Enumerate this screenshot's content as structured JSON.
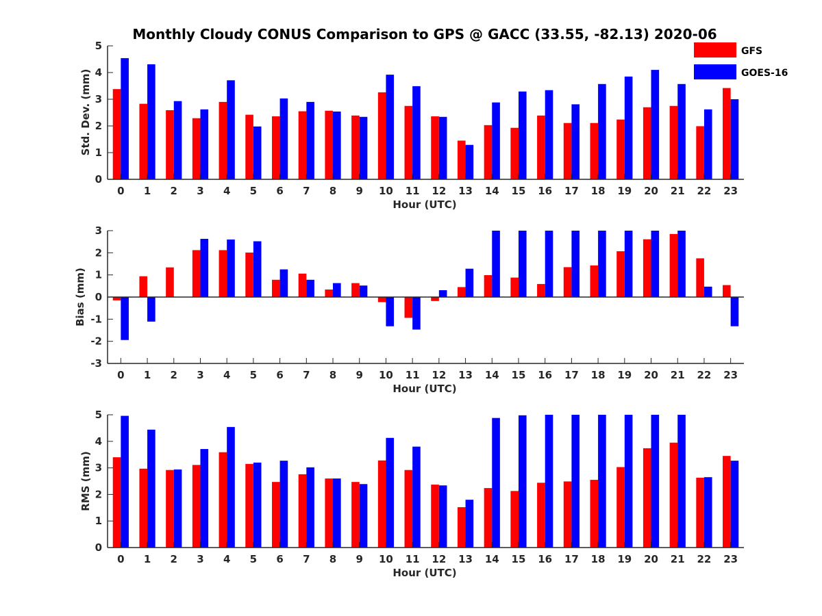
{
  "title": "Monthly Cloudy CONUS Comparison to GPS @ GACC (33.55, -82.13) 2020-06",
  "legend": {
    "placement": "top-right",
    "entries": [
      {
        "label": "GFS",
        "color": "#ff0000"
      },
      {
        "label": "GOES-16",
        "color": "#0000ff"
      }
    ]
  },
  "chart_data": [
    {
      "type": "bar",
      "xlabel": "Hour (UTC)",
      "ylabel": "Std. Dev. (mm)",
      "ylim": [
        0,
        5
      ],
      "yticks": [
        0,
        1,
        2,
        3,
        4,
        5
      ],
      "categories": [
        "0",
        "1",
        "2",
        "3",
        "4",
        "5",
        "6",
        "7",
        "8",
        "9",
        "10",
        "11",
        "12",
        "13",
        "14",
        "15",
        "16",
        "17",
        "18",
        "19",
        "20",
        "21",
        "22",
        "23"
      ],
      "series": [
        {
          "name": "GFS",
          "color": "#ff0000",
          "values": [
            3.38,
            2.83,
            2.59,
            2.29,
            2.9,
            2.42,
            2.36,
            2.55,
            2.57,
            2.39,
            3.26,
            2.75,
            2.36,
            1.45,
            2.03,
            1.93,
            2.39,
            2.11,
            2.11,
            2.24,
            2.7,
            2.75,
            1.99,
            3.42
          ]
        },
        {
          "name": "GOES-16",
          "color": "#0000ff",
          "values": [
            4.54,
            4.31,
            2.93,
            2.62,
            3.71,
            1.98,
            3.03,
            2.9,
            2.54,
            2.34,
            3.92,
            3.49,
            2.34,
            1.29,
            2.88,
            3.29,
            3.34,
            2.81,
            3.57,
            3.85,
            4.1,
            3.57,
            2.62,
            3.0
          ]
        }
      ]
    },
    {
      "type": "bar",
      "xlabel": "Hour (UTC)",
      "ylabel": "Bias (mm)",
      "ylim": [
        -3,
        3
      ],
      "yticks": [
        -3,
        -2,
        -1,
        0,
        1,
        2,
        3
      ],
      "categories": [
        "0",
        "1",
        "2",
        "3",
        "4",
        "5",
        "6",
        "7",
        "8",
        "9",
        "10",
        "11",
        "12",
        "13",
        "14",
        "15",
        "16",
        "17",
        "18",
        "19",
        "20",
        "21",
        "22",
        "23"
      ],
      "series": [
        {
          "name": "GFS",
          "color": "#ff0000",
          "values": [
            -0.15,
            0.94,
            1.34,
            2.12,
            2.12,
            2.01,
            0.78,
            1.06,
            0.34,
            0.63,
            -0.23,
            -0.94,
            -0.18,
            0.45,
            0.99,
            0.88,
            0.59,
            1.35,
            1.43,
            2.07,
            2.61,
            2.85,
            1.75,
            0.54
          ]
        },
        {
          "name": "GOES-16",
          "color": "#0000ff",
          "values": [
            -1.94,
            -1.11,
            0.0,
            2.63,
            2.6,
            2.52,
            1.25,
            0.78,
            0.63,
            0.52,
            -1.32,
            -1.47,
            0.31,
            1.28,
            3.0,
            3.0,
            3.0,
            3.0,
            3.0,
            3.0,
            3.0,
            3.0,
            0.47,
            -1.32
          ]
        }
      ]
    },
    {
      "type": "bar",
      "xlabel": "Hour (UTC)",
      "ylabel": "RMS (mm)",
      "ylim": [
        0,
        5
      ],
      "yticks": [
        0,
        1,
        2,
        3,
        4,
        5
      ],
      "categories": [
        "0",
        "1",
        "2",
        "3",
        "4",
        "5",
        "6",
        "7",
        "8",
        "9",
        "10",
        "11",
        "12",
        "13",
        "14",
        "15",
        "16",
        "17",
        "18",
        "19",
        "20",
        "21",
        "22",
        "23"
      ],
      "series": [
        {
          "name": "GFS",
          "color": "#ff0000",
          "values": [
            3.4,
            2.97,
            2.92,
            3.11,
            3.59,
            3.15,
            2.47,
            2.76,
            2.6,
            2.47,
            3.28,
            2.92,
            2.37,
            1.52,
            2.24,
            2.13,
            2.44,
            2.49,
            2.55,
            3.03,
            3.74,
            3.95,
            2.63,
            3.45
          ]
        },
        {
          "name": "GOES-16",
          "color": "#0000ff",
          "values": [
            4.96,
            4.44,
            2.94,
            3.71,
            4.54,
            3.2,
            3.27,
            3.02,
            2.6,
            2.39,
            4.13,
            3.8,
            2.34,
            1.8,
            4.88,
            4.98,
            5.0,
            5.0,
            5.0,
            5.0,
            5.0,
            5.0,
            2.65,
            3.27
          ]
        }
      ]
    }
  ]
}
